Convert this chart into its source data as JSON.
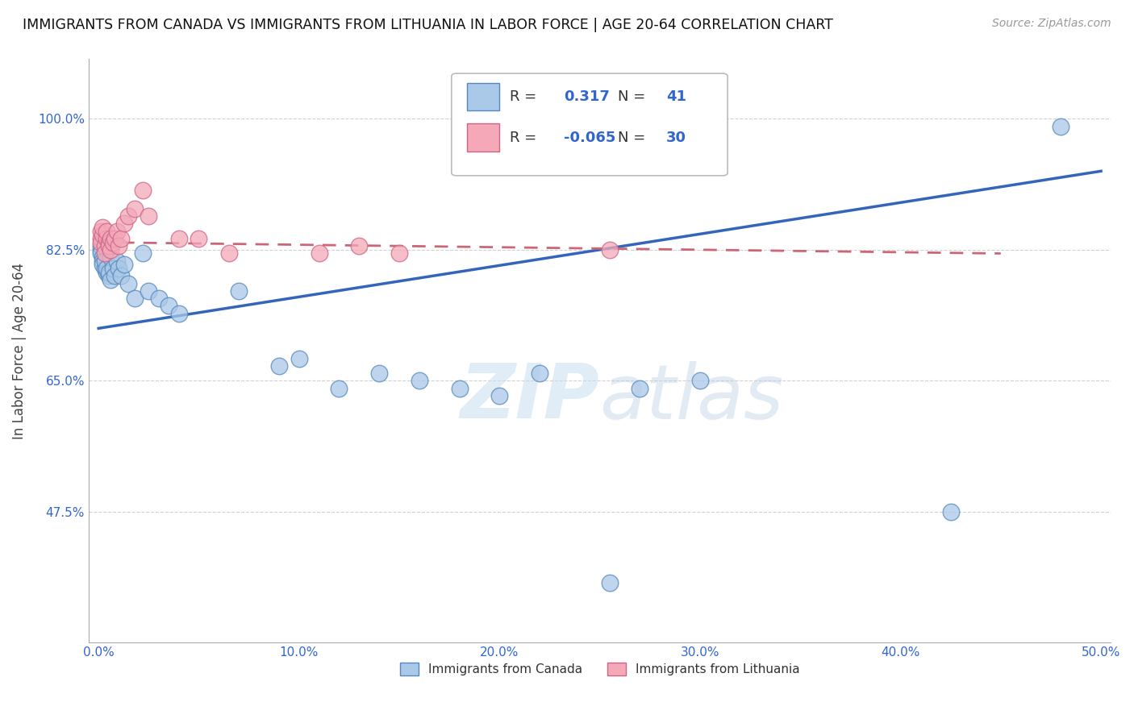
{
  "title": "IMMIGRANTS FROM CANADA VS IMMIGRANTS FROM LITHUANIA IN LABOR FORCE | AGE 20-64 CORRELATION CHART",
  "source": "Source: ZipAtlas.com",
  "ylabel": "In Labor Force | Age 20-64",
  "xlim": [
    -0.005,
    0.505
  ],
  "ylim": [
    0.3,
    1.08
  ],
  "xticks": [
    0.0,
    0.1,
    0.2,
    0.3,
    0.4,
    0.5
  ],
  "xticklabels": [
    "0.0%",
    "10.0%",
    "20.0%",
    "30.0%",
    "40.0%",
    "50.0%"
  ],
  "yticks": [
    0.475,
    0.65,
    0.825,
    1.0
  ],
  "yticklabels": [
    "47.5%",
    "65.0%",
    "82.5%",
    "100.0%"
  ],
  "canada_color": "#aac8e8",
  "lithuania_color": "#f4a8b8",
  "canada_edge": "#5588bb",
  "lithuania_edge": "#cc6688",
  "trend_canada_color": "#3366bb",
  "trend_lithuania_color": "#cc6677",
  "r_canada": 0.317,
  "n_canada": 41,
  "r_lithuania": -0.065,
  "n_lithuania": 30,
  "grid_color": "#cccccc",
  "legend_label_canada": "Immigrants from Canada",
  "legend_label_lithuania": "Immigrants from Lithuania",
  "canada_x": [
    0.001,
    0.001,
    0.001,
    0.002,
    0.002,
    0.002,
    0.003,
    0.003,
    0.004,
    0.004,
    0.005,
    0.005,
    0.006,
    0.006,
    0.007,
    0.008,
    0.009,
    0.01,
    0.011,
    0.013,
    0.015,
    0.018,
    0.022,
    0.025,
    0.03,
    0.035,
    0.04,
    0.07,
    0.09,
    0.1,
    0.12,
    0.14,
    0.16,
    0.18,
    0.2,
    0.22,
    0.255,
    0.27,
    0.3,
    0.425,
    0.48
  ],
  "canada_y": [
    0.825,
    0.83,
    0.82,
    0.815,
    0.81,
    0.805,
    0.8,
    0.81,
    0.795,
    0.8,
    0.79,
    0.795,
    0.785,
    0.815,
    0.8,
    0.79,
    0.81,
    0.8,
    0.79,
    0.805,
    0.78,
    0.76,
    0.82,
    0.77,
    0.76,
    0.75,
    0.74,
    0.77,
    0.67,
    0.68,
    0.64,
    0.66,
    0.65,
    0.64,
    0.63,
    0.66,
    0.38,
    0.64,
    0.65,
    0.475,
    0.99
  ],
  "lithuania_x": [
    0.001,
    0.001,
    0.001,
    0.002,
    0.002,
    0.003,
    0.003,
    0.004,
    0.004,
    0.005,
    0.005,
    0.006,
    0.006,
    0.007,
    0.008,
    0.009,
    0.01,
    0.011,
    0.013,
    0.015,
    0.018,
    0.022,
    0.025,
    0.04,
    0.05,
    0.065,
    0.11,
    0.13,
    0.15,
    0.255
  ],
  "lithuania_y": [
    0.84,
    0.85,
    0.835,
    0.845,
    0.855,
    0.83,
    0.82,
    0.84,
    0.85,
    0.835,
    0.83,
    0.84,
    0.825,
    0.835,
    0.84,
    0.85,
    0.83,
    0.84,
    0.86,
    0.87,
    0.88,
    0.905,
    0.87,
    0.84,
    0.84,
    0.82,
    0.82,
    0.83,
    0.82,
    0.825
  ],
  "trend_canada_x0": 0.0,
  "trend_canada_y0": 0.72,
  "trend_canada_x1": 0.5,
  "trend_canada_y1": 0.93,
  "trend_lithuania_x0": 0.0,
  "trend_lithuania_y0": 0.835,
  "trend_lithuania_x1": 0.45,
  "trend_lithuania_y1": 0.82
}
